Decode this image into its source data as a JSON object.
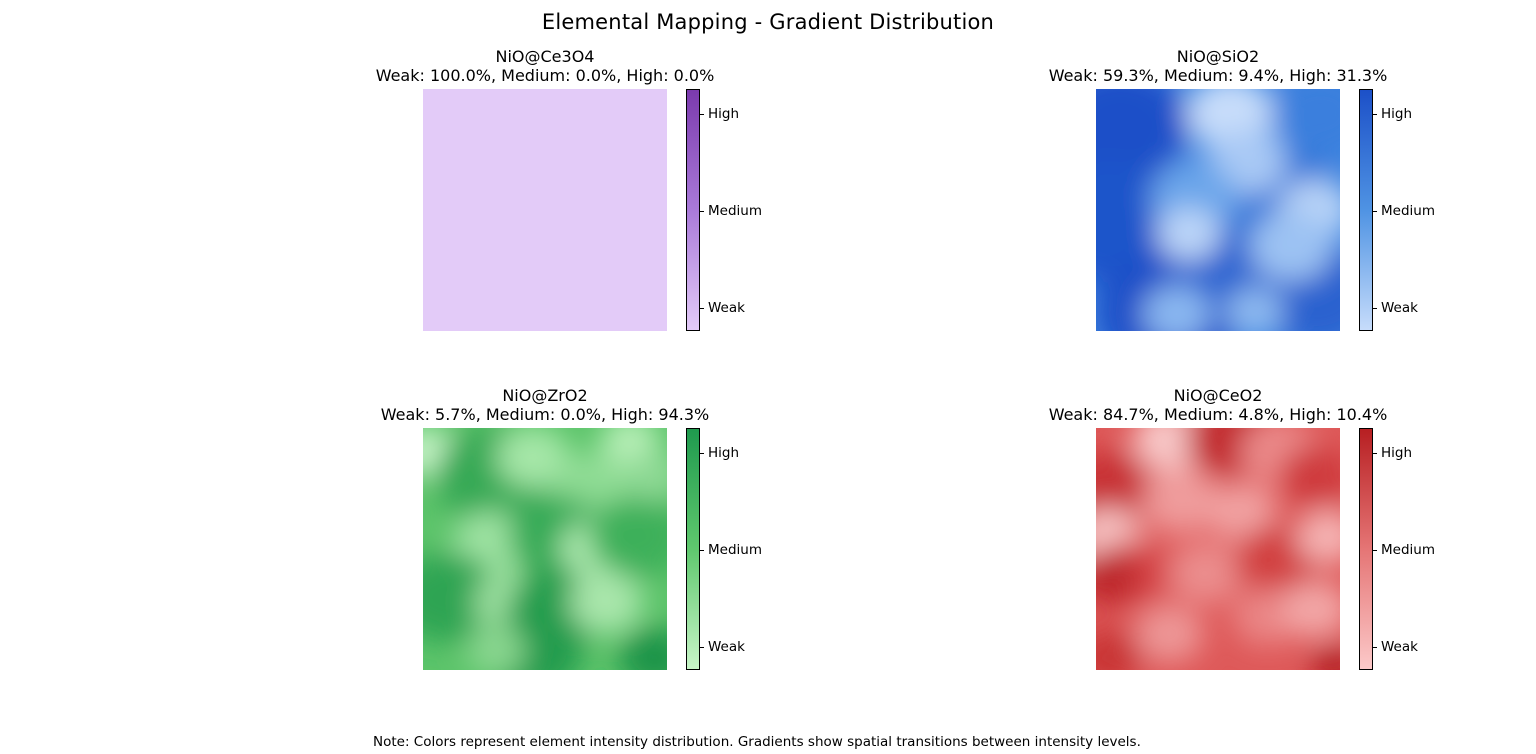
{
  "title": "Elemental Mapping - Gradient Distribution",
  "note": "Note: Colors represent element intensity distribution. Gradients show spatial transitions between intensity levels.",
  "chart_data": [
    {
      "type": "heatmap",
      "title": "NiO@Ce3O4",
      "subtitle": "Weak: 100.0%, Medium: 0.0%, High: 0.0%",
      "distribution": {
        "Weak": 100.0,
        "Medium": 0.0,
        "High": 0.0
      },
      "colorbar_ticks": [
        "High",
        "Medium",
        "Weak"
      ],
      "colormap": [
        "#e3cbf8",
        "#a97ad9",
        "#7b3aae"
      ],
      "dominant_color": "#e3cbf8",
      "blobs": []
    },
    {
      "type": "heatmap",
      "title": "NiO@SiO2",
      "subtitle": "Weak: 59.3%, Medium: 9.4%, High: 31.3%",
      "distribution": {
        "Weak": 59.3,
        "Medium": 9.4,
        "High": 31.3
      },
      "colorbar_ticks": [
        "High",
        "Medium",
        "Weak"
      ],
      "colormap": [
        "#c6dcfb",
        "#4f93e3",
        "#1c50c8"
      ],
      "dominant_color": "#3f86e0",
      "blobs": [
        {
          "fx": 0.1,
          "fy": 0.15,
          "color": "#1c50c8",
          "r": 0.28
        },
        {
          "fx": 0.05,
          "fy": 0.55,
          "color": "#1e55ca",
          "r": 0.3
        },
        {
          "fx": 0.3,
          "fy": 0.92,
          "color": "#1c50c8",
          "r": 0.3
        },
        {
          "fx": 0.55,
          "fy": 0.75,
          "color": "#2a63d0",
          "r": 0.25
        },
        {
          "fx": 0.9,
          "fy": 0.85,
          "color": "#2a62cf",
          "r": 0.25
        },
        {
          "fx": 0.75,
          "fy": 0.45,
          "color": "#3174d8",
          "r": 0.25
        },
        {
          "fx": 0.55,
          "fy": 0.1,
          "color": "#c8ddfa",
          "r": 0.18
        },
        {
          "fx": 0.62,
          "fy": 0.3,
          "color": "#a9c9f5",
          "r": 0.16
        },
        {
          "fx": 0.4,
          "fy": 0.45,
          "color": "#6aa5ea",
          "r": 0.18
        },
        {
          "fx": 0.38,
          "fy": 0.6,
          "color": "#bcd5f8",
          "r": 0.13
        },
        {
          "fx": 0.9,
          "fy": 0.5,
          "color": "#b8d3f7",
          "r": 0.15
        },
        {
          "fx": 0.8,
          "fy": 0.65,
          "color": "#9cc2f3",
          "r": 0.17
        },
        {
          "fx": 0.33,
          "fy": 0.93,
          "color": "#8ab7f0",
          "r": 0.14
        },
        {
          "fx": 0.92,
          "fy": 0.1,
          "color": "#3b7fdd",
          "r": 0.2
        },
        {
          "fx": 0.65,
          "fy": 0.92,
          "color": "#8db9f0",
          "r": 0.12
        }
      ]
    },
    {
      "type": "heatmap",
      "title": "NiO@ZrO2",
      "subtitle": "Weak: 5.7%, Medium: 0.0%, High: 94.3%",
      "distribution": {
        "Weak": 5.7,
        "Medium": 0.0,
        "High": 94.3
      },
      "colorbar_ticks": [
        "High",
        "Medium",
        "Weak"
      ],
      "colormap": [
        "#c8f5c8",
        "#5fc86e",
        "#1f9a4e"
      ],
      "dominant_color": "#5cc46a",
      "blobs": [
        {
          "fx": 0.02,
          "fy": 0.1,
          "color": "#c8f5c8",
          "r": 0.12
        },
        {
          "fx": 0.3,
          "fy": 0.2,
          "color": "#35a955",
          "r": 0.25
        },
        {
          "fx": 0.45,
          "fy": 0.12,
          "color": "#a6e7a8",
          "r": 0.15
        },
        {
          "fx": 0.7,
          "fy": 0.25,
          "color": "#8fdc94",
          "r": 0.18
        },
        {
          "fx": 0.85,
          "fy": 0.05,
          "color": "#b6eeb6",
          "r": 0.12
        },
        {
          "fx": 0.28,
          "fy": 0.48,
          "color": "#9fe3a3",
          "r": 0.16
        },
        {
          "fx": 0.55,
          "fy": 0.45,
          "color": "#36aa56",
          "r": 0.2
        },
        {
          "fx": 0.7,
          "fy": 0.5,
          "color": "#aeeab0",
          "r": 0.14
        },
        {
          "fx": 0.88,
          "fy": 0.45,
          "color": "#3db05a",
          "r": 0.2
        },
        {
          "fx": 0.1,
          "fy": 0.7,
          "color": "#2fa452",
          "r": 0.22
        },
        {
          "fx": 0.35,
          "fy": 0.72,
          "color": "#9fe1a2",
          "r": 0.14
        },
        {
          "fx": 0.55,
          "fy": 0.75,
          "color": "#249d4e",
          "r": 0.2
        },
        {
          "fx": 0.75,
          "fy": 0.72,
          "color": "#a9e6ab",
          "r": 0.15
        },
        {
          "fx": 0.45,
          "fy": 0.93,
          "color": "#249b4d",
          "r": 0.2
        },
        {
          "fx": 0.95,
          "fy": 0.95,
          "color": "#1c9449",
          "r": 0.15
        },
        {
          "fx": 0.95,
          "fy": 0.2,
          "color": "#8ed994",
          "r": 0.12
        },
        {
          "fx": 0.3,
          "fy": 0.92,
          "color": "#8ad790",
          "r": 0.12
        }
      ]
    },
    {
      "type": "heatmap",
      "title": "NiO@CeO2",
      "subtitle": "Weak: 84.7%, Medium: 4.8%, High: 10.4%",
      "distribution": {
        "Weak": 84.7,
        "Medium": 4.8,
        "High": 10.4
      },
      "colorbar_ticks": [
        "High",
        "Medium",
        "Weak"
      ],
      "colormap": [
        "#fcc9c9",
        "#e57575",
        "#b71f22"
      ],
      "dominant_color": "#de5959",
      "blobs": [
        {
          "fx": 0.3,
          "fy": 0.05,
          "color": "#f8c8c8",
          "r": 0.15
        },
        {
          "fx": 0.55,
          "fy": 0.05,
          "color": "#c22c2f",
          "r": 0.18
        },
        {
          "fx": 0.75,
          "fy": 0.1,
          "color": "#eb8a8a",
          "r": 0.16
        },
        {
          "fx": 0.9,
          "fy": 0.2,
          "color": "#cf3b3d",
          "r": 0.15
        },
        {
          "fx": 0.05,
          "fy": 0.25,
          "color": "#c83235",
          "r": 0.18
        },
        {
          "fx": 0.35,
          "fy": 0.3,
          "color": "#ef9b9b",
          "r": 0.16
        },
        {
          "fx": 0.6,
          "fy": 0.35,
          "color": "#f1a2a2",
          "r": 0.14
        },
        {
          "fx": 0.05,
          "fy": 0.45,
          "color": "#f7c2c2",
          "r": 0.14
        },
        {
          "fx": 0.15,
          "fy": 0.6,
          "color": "#d64447",
          "r": 0.16
        },
        {
          "fx": 0.05,
          "fy": 0.62,
          "color": "#bd2629",
          "r": 0.13
        },
        {
          "fx": 0.45,
          "fy": 0.6,
          "color": "#eb8d8d",
          "r": 0.15
        },
        {
          "fx": 0.75,
          "fy": 0.55,
          "color": "#d2403f",
          "r": 0.18
        },
        {
          "fx": 0.95,
          "fy": 0.45,
          "color": "#f5b3b3",
          "r": 0.13
        },
        {
          "fx": 0.3,
          "fy": 0.85,
          "color": "#ed9696",
          "r": 0.14
        },
        {
          "fx": 0.7,
          "fy": 0.78,
          "color": "#ea8585",
          "r": 0.14
        },
        {
          "fx": 0.9,
          "fy": 0.75,
          "color": "#f2a6a6",
          "r": 0.14
        },
        {
          "fx": 0.98,
          "fy": 0.98,
          "color": "#b41d20",
          "r": 0.1
        },
        {
          "fx": 0.05,
          "fy": 0.95,
          "color": "#c93436",
          "r": 0.14
        }
      ]
    }
  ]
}
